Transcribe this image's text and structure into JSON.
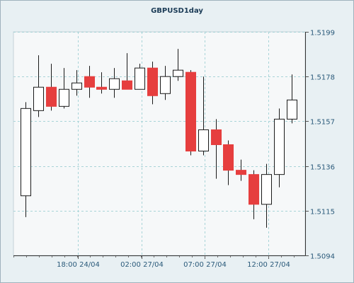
{
  "chart_data": {
    "type": "candlestick",
    "title": "GBPUSD1day",
    "ylim": [
      1.5094,
      1.5199
    ],
    "y_ticks": [
      "1.5094",
      "1.5115",
      "1.5136",
      "1.5157",
      "1.5178",
      "1.5199"
    ],
    "x_ticks": [
      "18:00 24/04",
      "02:00 27/04",
      "07:00 27/04",
      "12:00 27/04"
    ],
    "grid": true,
    "colors": {
      "bull_fill": "#ffffff",
      "bear_fill": "#e63e3e",
      "outline": "#1a1a1a",
      "axis_text": "#2a5a7a",
      "grid": "#a8d4d8",
      "plot_bg": "#f6f8f9"
    },
    "candles": [
      {
        "open": 1.5122,
        "high": 1.5166,
        "low": 1.5112,
        "close": 1.5163
      },
      {
        "open": 1.5162,
        "high": 1.5188,
        "low": 1.5159,
        "close": 1.5173
      },
      {
        "open": 1.5173,
        "high": 1.5184,
        "low": 1.5162,
        "close": 1.5164
      },
      {
        "open": 1.5164,
        "high": 1.5182,
        "low": 1.5163,
        "close": 1.5172
      },
      {
        "open": 1.5172,
        "high": 1.5181,
        "low": 1.5169,
        "close": 1.5175
      },
      {
        "open": 1.5178,
        "high": 1.5183,
        "low": 1.5168,
        "close": 1.5173
      },
      {
        "open": 1.5173,
        "high": 1.518,
        "low": 1.517,
        "close": 1.5172
      },
      {
        "open": 1.5172,
        "high": 1.5182,
        "low": 1.5168,
        "close": 1.5177
      },
      {
        "open": 1.5176,
        "high": 1.5189,
        "low": 1.5172,
        "close": 1.5172
      },
      {
        "open": 1.5172,
        "high": 1.5184,
        "low": 1.5172,
        "close": 1.5182
      },
      {
        "open": 1.5182,
        "high": 1.5185,
        "low": 1.5165,
        "close": 1.5169
      },
      {
        "open": 1.517,
        "high": 1.5183,
        "low": 1.5167,
        "close": 1.5178
      },
      {
        "open": 1.5178,
        "high": 1.5191,
        "low": 1.5176,
        "close": 1.5181
      },
      {
        "open": 1.518,
        "high": 1.5181,
        "low": 1.5141,
        "close": 1.5143
      },
      {
        "open": 1.5143,
        "high": 1.5178,
        "low": 1.5141,
        "close": 1.5153
      },
      {
        "open": 1.5153,
        "high": 1.5158,
        "low": 1.513,
        "close": 1.5146
      },
      {
        "open": 1.5146,
        "high": 1.5148,
        "low": 1.5127,
        "close": 1.5134
      },
      {
        "open": 1.5134,
        "high": 1.5139,
        "low": 1.5129,
        "close": 1.5132
      },
      {
        "open": 1.5132,
        "high": 1.5134,
        "low": 1.5111,
        "close": 1.5118
      },
      {
        "open": 1.5118,
        "high": 1.5137,
        "low": 1.5107,
        "close": 1.5132
      },
      {
        "open": 1.5132,
        "high": 1.5163,
        "low": 1.5126,
        "close": 1.5158
      },
      {
        "open": 1.5158,
        "high": 1.5179,
        "low": 1.5156,
        "close": 1.5167
      }
    ]
  }
}
